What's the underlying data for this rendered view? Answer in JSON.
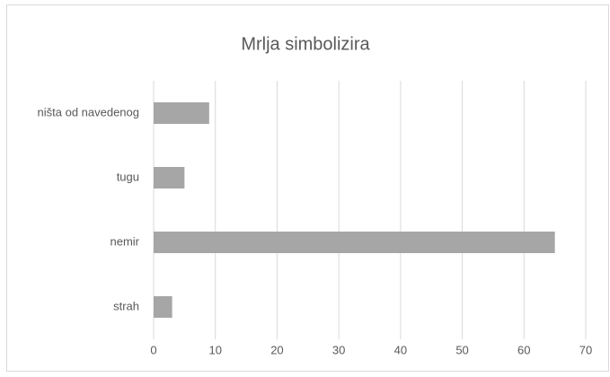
{
  "chart_data": {
    "type": "barh",
    "title": "Mrlja simbolizira",
    "categories": [
      "strah",
      "nemir",
      "tugu",
      "ništa od navedenog"
    ],
    "values": [
      3,
      65,
      5,
      9
    ],
    "color": "#a6a6a6",
    "xlim": [
      0,
      70
    ],
    "xticks": [
      0,
      10,
      20,
      30,
      40,
      50,
      60,
      70
    ],
    "grid": true
  }
}
